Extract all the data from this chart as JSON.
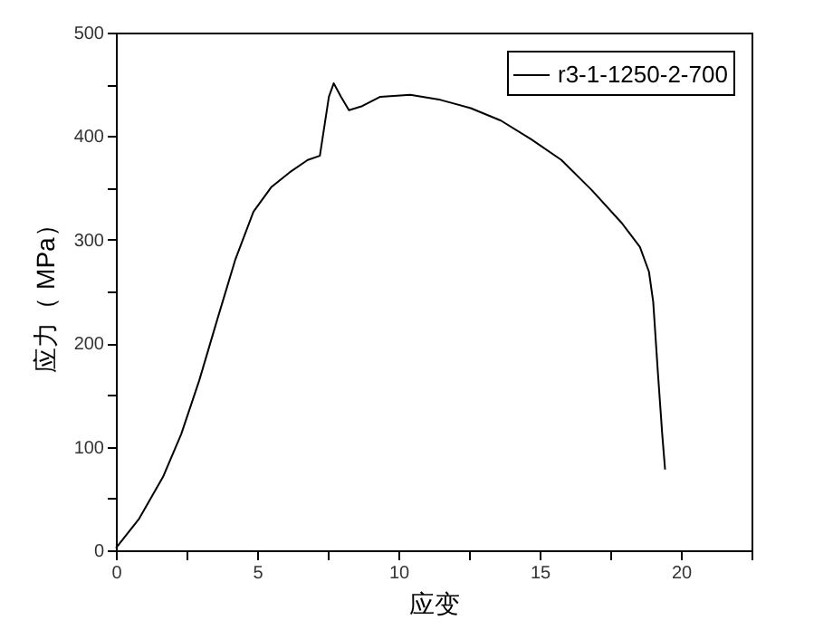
{
  "chart_data": {
    "type": "line",
    "xlabel": "应变",
    "ylabel": "应力（ MPa）",
    "xlim": [
      0,
      22.5
    ],
    "ylim": [
      0,
      500
    ],
    "xticks": [
      0,
      {
        "value": 2.5,
        "label": null
      },
      5,
      {
        "value": 7.5,
        "label": null
      },
      10,
      {
        "value": 12.5,
        "label": null
      },
      15,
      {
        "value": 17.5,
        "label": null
      },
      20,
      {
        "value": 22.5,
        "label": null
      }
    ],
    "yticks": [
      0,
      {
        "value": 50,
        "label": null
      },
      100,
      {
        "value": 150,
        "label": null
      },
      200,
      {
        "value": 250,
        "label": null
      },
      300,
      {
        "value": 350,
        "label": null
      },
      400,
      {
        "value": 450,
        "label": null
      },
      500
    ],
    "x": [
      0,
      0.81,
      1.67,
      2.31,
      2.95,
      3.59,
      4.23,
      4.87,
      5.51,
      6.15,
      6.79,
      7.22,
      7.54,
      7.71,
      7.97,
      8.25,
      8.72,
      9.36,
      10.42,
      11.49,
      12.56,
      13.63,
      14.7,
      15.77,
      16.84,
      17.91,
      18.55,
      18.87,
      19.02,
      19.19,
      19.34,
      19.44
    ],
    "series": [
      {
        "name": "r3-1-1250-2-700",
        "color": "#000000",
        "values": [
          2,
          30,
          71,
          112,
          164,
          223,
          281,
          327,
          351,
          365,
          377,
          381,
          438,
          451,
          438,
          425,
          429,
          438,
          440,
          435,
          427,
          415,
          397,
          377,
          348,
          316,
          293,
          269,
          240,
          170,
          112,
          78
        ]
      }
    ],
    "legend": "top right",
    "grid": false,
    "marker": "none",
    "line_style": "solid"
  }
}
